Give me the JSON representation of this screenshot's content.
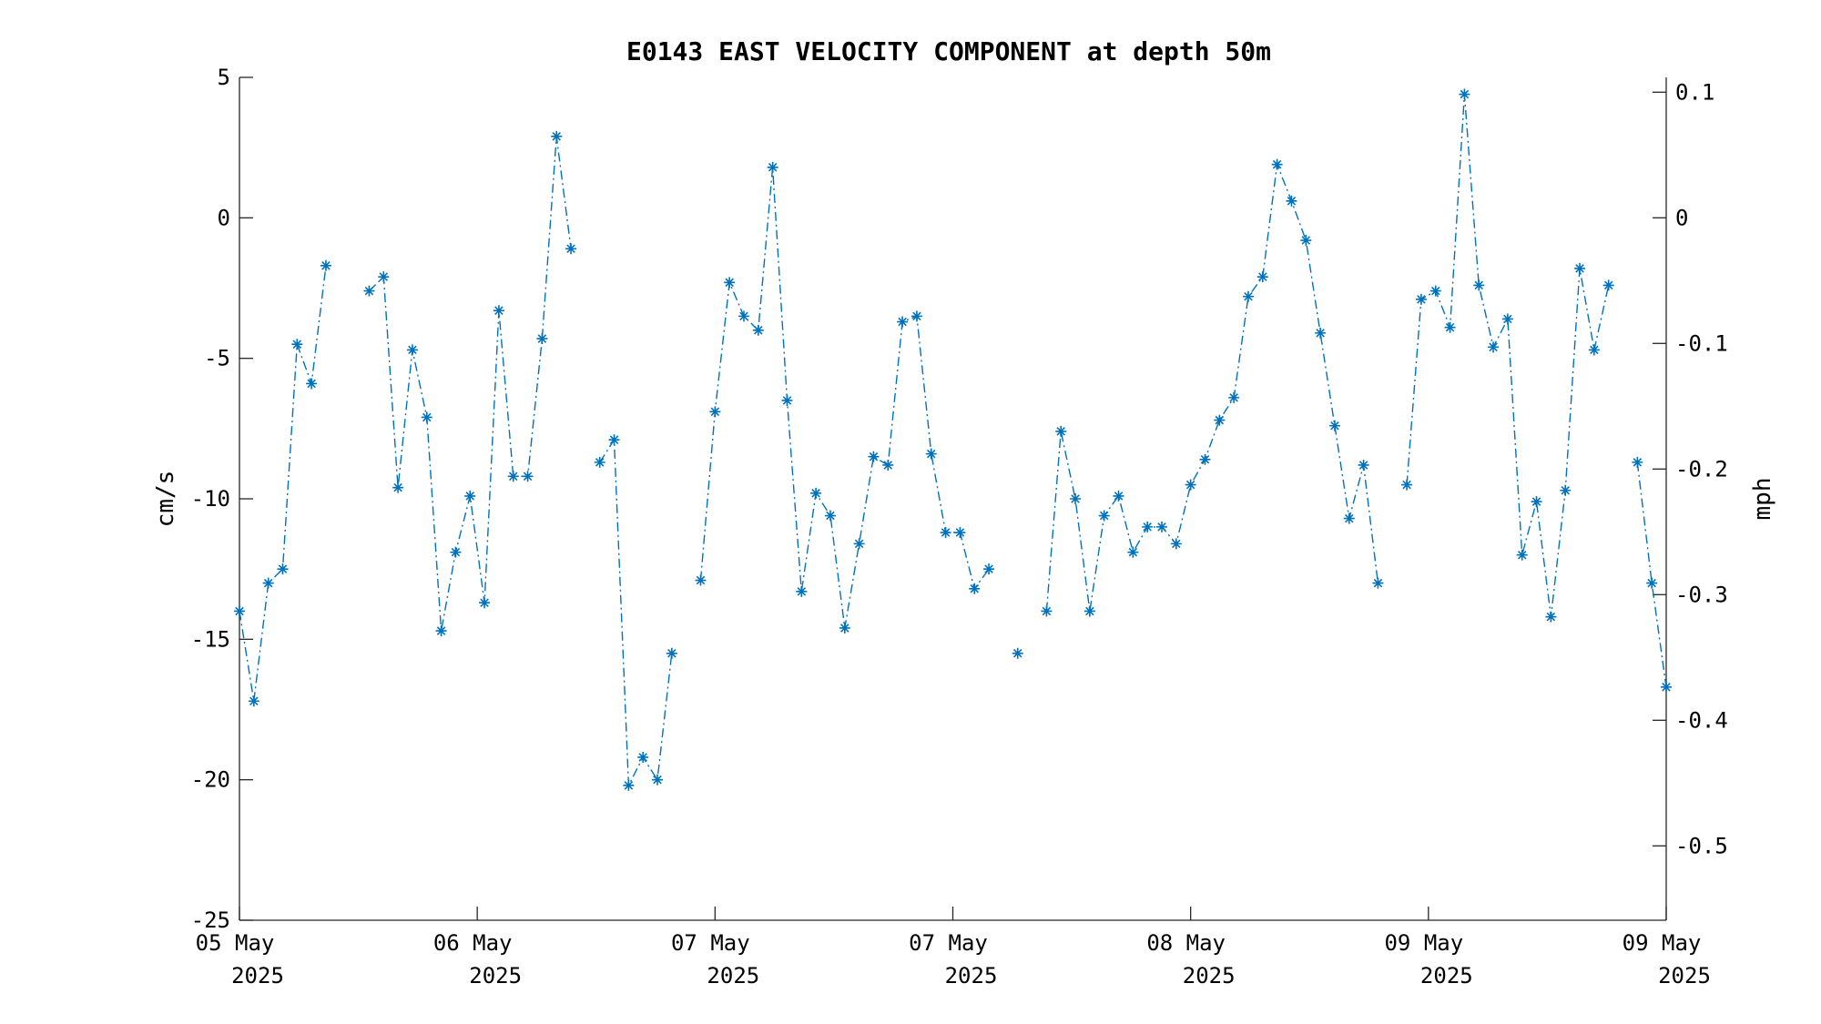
{
  "chart_data": {
    "type": "line",
    "title": "E0143 EAST VELOCITY COMPONENT at depth 50m",
    "ylabel": "cm/s",
    "y2label": "mph",
    "ylim": [
      -25,
      5
    ],
    "y2lim": [
      -0.5592,
      0.1118
    ],
    "yticks": [
      "5",
      "0",
      "-5",
      "-10",
      "-15",
      "-20",
      "-25"
    ],
    "yticks_values": [
      5,
      0,
      -5,
      -10,
      -15,
      -20,
      -25
    ],
    "y2ticks": [
      "0.1",
      "0",
      "-0.1",
      "-0.2",
      "-0.3",
      "-0.4",
      "-0.5"
    ],
    "y2ticks_values": [
      0.1,
      0,
      -0.1,
      -0.2,
      -0.3,
      -0.4,
      -0.5
    ],
    "xticks": [
      {
        "line1": "05 May",
        "line2": "2025"
      },
      {
        "line1": "06 May",
        "line2": "2025"
      },
      {
        "line1": "07 May",
        "line2": "2025"
      },
      {
        "line1": "07 May",
        "line2": "2025"
      },
      {
        "line1": "08 May",
        "line2": "2025"
      },
      {
        "line1": "09 May",
        "line2": "2025"
      },
      {
        "line1": "09 May",
        "line2": "2025"
      }
    ],
    "grid": false,
    "legend": "none",
    "color": "#0072BD",
    "marker": "asterisk",
    "line_style": "dash-dot",
    "series": [
      {
        "values": [
          -14,
          -17.2,
          -13,
          -12.5,
          -4.5,
          -5.9,
          -1.7,
          null,
          null,
          -2.6,
          -2.1,
          -9.6,
          -4.7,
          -7.1,
          -14.7,
          -11.9,
          -9.9,
          -13.7,
          -3.3,
          -9.2,
          -9.2,
          -4.3,
          2.9,
          -1.1,
          null,
          -8.7,
          -7.9,
          -20.2,
          -19.2,
          -20,
          -15.5,
          null,
          -12.9,
          -6.9,
          -2.3,
          -3.5,
          -4,
          1.8,
          -6.5,
          -13.3,
          -9.8,
          -10.6,
          -14.6,
          -11.6,
          -8.5,
          -8.8,
          -3.7,
          -3.5,
          -8.4,
          -11.2,
          -11.2,
          -13.2,
          -12.5,
          null,
          -15.5,
          null,
          -14,
          -7.6,
          -10,
          -14,
          -10.6,
          -9.9,
          -11.9,
          -11,
          -11,
          -11.6,
          -9.5,
          -8.6,
          -7.2,
          -6.4,
          -2.8,
          -2.1,
          1.9,
          0.6,
          -0.8,
          -4.1,
          -7.4,
          -10.7,
          -8.8,
          -13,
          null,
          -9.5,
          -2.9,
          -2.6,
          -3.9,
          4.4,
          -2.4,
          -4.6,
          -3.6,
          -12,
          -10.1,
          -14.2,
          -9.7,
          -1.8,
          -4.7,
          -2.4,
          null,
          -8.7,
          -13,
          -16.7
        ]
      }
    ]
  }
}
